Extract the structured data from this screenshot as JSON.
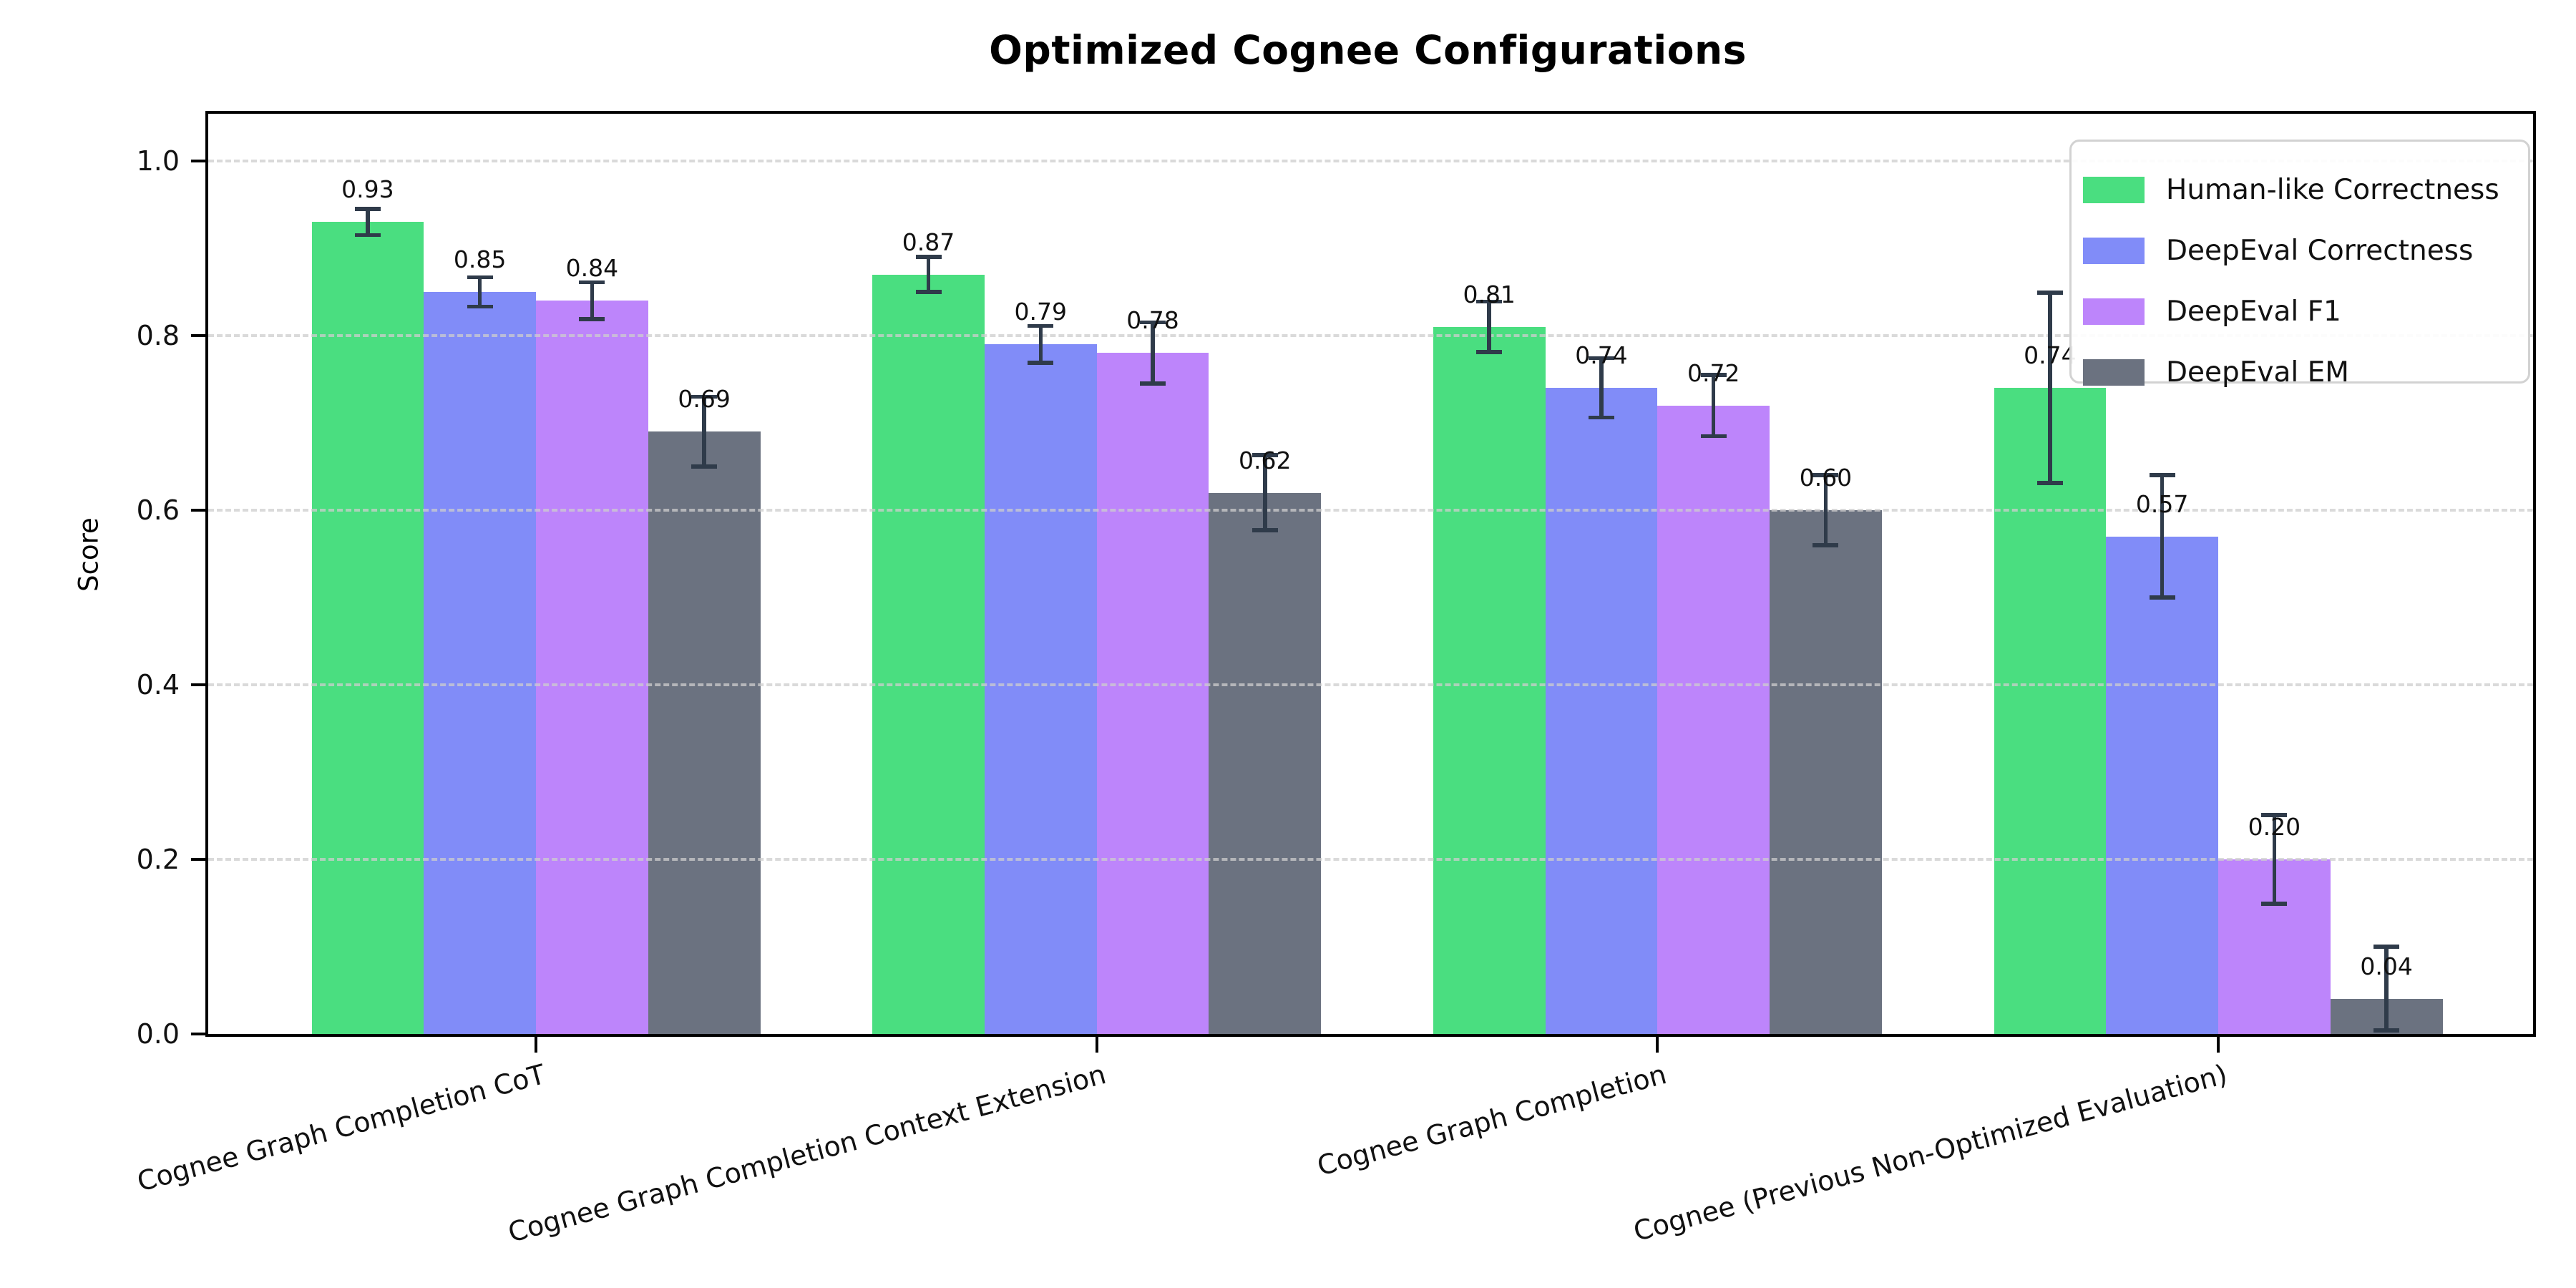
{
  "chart_data": {
    "type": "bar",
    "title": "Optimized Cognee Configurations",
    "ylabel": "Score",
    "xlabel": "",
    "ylim": [
      0,
      1.054
    ],
    "yticks": [
      0.0,
      0.2,
      0.4,
      0.6,
      0.8,
      1.0
    ],
    "ytick_labels": [
      "0.0",
      "0.2",
      "0.4",
      "0.6",
      "0.8",
      "1.0"
    ],
    "grid": "horizontal-dashed",
    "legend_position": "upper-right",
    "xtick_rotation_deg": 15,
    "label_format": "0.00",
    "error_color": "#2f3b4a",
    "categories": [
      "Cognee Graph Completion CoT",
      "Cognee Graph Completion Context Extension",
      "Cognee Graph Completion",
      "Cognee (Previous Non-Optimized Evaluation)"
    ],
    "series": [
      {
        "name": "Human-like Correctness",
        "color": "#4ade80",
        "values": [
          0.93,
          0.87,
          0.81,
          0.74
        ],
        "errors": [
          0.015,
          0.02,
          0.029,
          0.109
        ]
      },
      {
        "name": "DeepEval Correctness",
        "color": "#818cf8",
        "values": [
          0.85,
          0.79,
          0.74,
          0.57
        ],
        "errors": [
          0.017,
          0.021,
          0.034,
          0.07
        ]
      },
      {
        "name": "DeepEval F1",
        "color": "#bd85fb",
        "values": [
          0.84,
          0.78,
          0.72,
          0.2
        ],
        "errors": [
          0.021,
          0.035,
          0.035,
          0.051
        ]
      },
      {
        "name": "DeepEval EM",
        "color": "#6b7280",
        "values": [
          0.69,
          0.62,
          0.6,
          0.04
        ],
        "errors": [
          0.04,
          0.043,
          0.04,
          0.06
        ]
      }
    ]
  }
}
